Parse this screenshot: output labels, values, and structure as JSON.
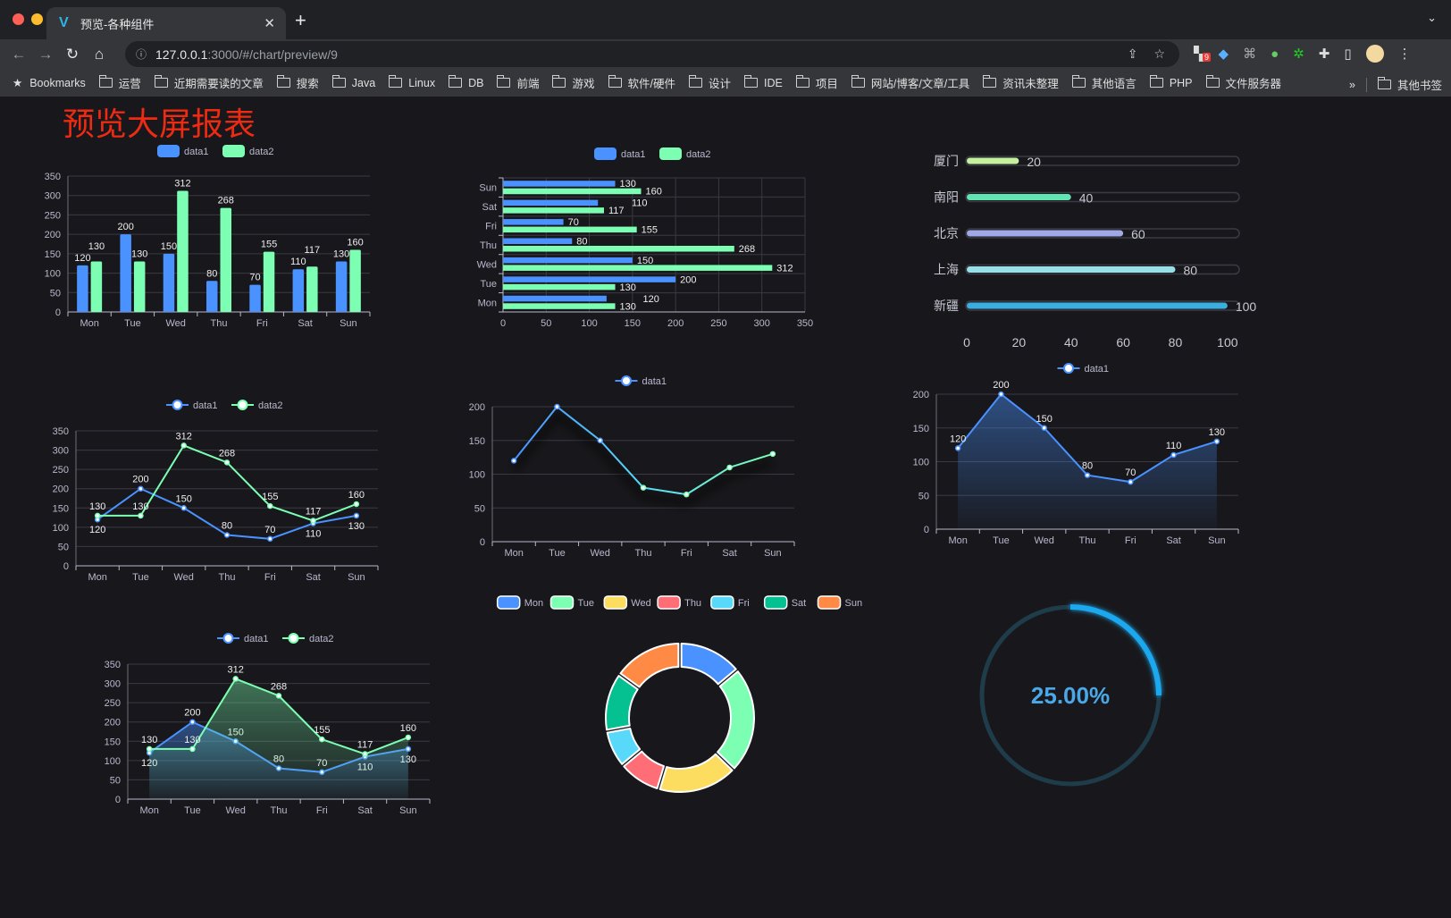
{
  "browser": {
    "tab_title": "预览-各种组件",
    "url_host": "127.0.0.1",
    "url_rest": ":3000/#/chart/preview/9",
    "extension_badge": "9",
    "bookmarks_label": "Bookmarks",
    "bookmark_folders": [
      "运营",
      "近期需要读的文章",
      "搜索",
      "Java",
      "Linux",
      "DB",
      "前端",
      "游戏",
      "软件/硬件",
      "设计",
      "IDE",
      "项目",
      "网站/博客/文章/工具",
      "资讯未整理",
      "其他语言",
      "PHP",
      "文件服务器"
    ],
    "overflow": "»",
    "other_bookmarks": "其他书签"
  },
  "page": {
    "title": "预览大屏报表"
  },
  "colors": {
    "blue": "#4992ff",
    "green": "#7cffb2",
    "yellow": "#fddd60",
    "red": "#ff6e76",
    "cyan": "#58d9f9",
    "teal": "#05c091",
    "orange": "#ff8a45",
    "title": "#ee2a12",
    "gauge": "#1fa8ef"
  },
  "chart_data": [
    {
      "type": "bar",
      "categories": [
        "Mon",
        "Tue",
        "Wed",
        "Thu",
        "Fri",
        "Sat",
        "Sun"
      ],
      "ylim": [
        0,
        350
      ],
      "yticks": [
        "0",
        "50",
        "100",
        "150",
        "200",
        "250",
        "300",
        "350"
      ],
      "legend": "top",
      "grid": true,
      "series": [
        {
          "name": "data1",
          "values": [
            120,
            200,
            150,
            80,
            70,
            110,
            130
          ],
          "color": "#4992ff"
        },
        {
          "name": "data2",
          "values": [
            130,
            130,
            312,
            268,
            155,
            117,
            160
          ],
          "color": "#7cffb2"
        }
      ]
    },
    {
      "type": "bar",
      "orientation": "horizontal",
      "categories": [
        "Mon",
        "Tue",
        "Wed",
        "Thu",
        "Fri",
        "Sat",
        "Sun"
      ],
      "xlim": [
        0,
        350
      ],
      "xticks": [
        "0",
        "50",
        "100",
        "150",
        "200",
        "250",
        "300",
        "350"
      ],
      "legend": "top",
      "grid": true,
      "series": [
        {
          "name": "data1",
          "values": [
            120,
            200,
            150,
            80,
            70,
            110,
            130
          ],
          "color": "#4992ff"
        },
        {
          "name": "data2",
          "values": [
            130,
            130,
            312,
            268,
            155,
            117,
            160
          ],
          "color": "#7cffb2"
        }
      ]
    },
    {
      "type": "bar",
      "subtype": "progress",
      "categories": [
        "厦门",
        "南阳",
        "北京",
        "上海",
        "新疆"
      ],
      "values": [
        20,
        40,
        60,
        80,
        100
      ],
      "xlim": [
        0,
        100
      ],
      "xticks": [
        "0",
        "20",
        "40",
        "60",
        "80",
        "100"
      ],
      "colors": [
        "#c5f0a0",
        "#62e3b2",
        "#a0a8e8",
        "#96e0e8",
        "#3aaee0"
      ]
    },
    {
      "type": "line",
      "categories": [
        "Mon",
        "Tue",
        "Wed",
        "Thu",
        "Fri",
        "Sat",
        "Sun"
      ],
      "ylim": [
        0,
        350
      ],
      "yticks": [
        "0",
        "50",
        "100",
        "150",
        "200",
        "250",
        "300",
        "350"
      ],
      "legend": "top",
      "grid": true,
      "series": [
        {
          "name": "data1",
          "values": [
            120,
            200,
            150,
            80,
            70,
            110,
            130
          ],
          "color": "#4992ff"
        },
        {
          "name": "data2",
          "values": [
            130,
            130,
            312,
            268,
            155,
            117,
            160
          ],
          "color": "#7cffb2"
        }
      ]
    },
    {
      "type": "line",
      "subtype": "gradient-shadow",
      "categories": [
        "Mon",
        "Tue",
        "Wed",
        "Thu",
        "Fri",
        "Sat",
        "Sun"
      ],
      "ylim": [
        0,
        200
      ],
      "yticks": [
        "0",
        "50",
        "100",
        "150",
        "200"
      ],
      "legend": "top",
      "grid": true,
      "series": [
        {
          "name": "data1",
          "values": [
            120,
            200,
            150,
            80,
            70,
            110,
            130
          ],
          "color": "#4992ff"
        }
      ]
    },
    {
      "type": "area",
      "categories": [
        "Mon",
        "Tue",
        "Wed",
        "Thu",
        "Fri",
        "Sat",
        "Sun"
      ],
      "ylim": [
        0,
        200
      ],
      "yticks": [
        "0",
        "50",
        "100",
        "150",
        "200"
      ],
      "legend": "top",
      "grid": true,
      "series": [
        {
          "name": "data1",
          "values": [
            120,
            200,
            150,
            80,
            70,
            110,
            130
          ],
          "color": "#4992ff"
        }
      ]
    },
    {
      "type": "area",
      "categories": [
        "Mon",
        "Tue",
        "Wed",
        "Thu",
        "Fri",
        "Sat",
        "Sun"
      ],
      "ylim": [
        0,
        350
      ],
      "yticks": [
        "0",
        "50",
        "100",
        "150",
        "200",
        "250",
        "300",
        "350"
      ],
      "legend": "top",
      "grid": true,
      "series": [
        {
          "name": "data1",
          "values": [
            120,
            200,
            150,
            80,
            70,
            110,
            130
          ],
          "color": "#4992ff"
        },
        {
          "name": "data2",
          "values": [
            130,
            130,
            312,
            268,
            155,
            117,
            160
          ],
          "color": "#7cffb2"
        }
      ]
    },
    {
      "type": "pie",
      "subtype": "donut",
      "legend": "top",
      "categories": [
        "Mon",
        "Tue",
        "Wed",
        "Thu",
        "Fri",
        "Sat",
        "Sun"
      ],
      "values": [
        120,
        200,
        150,
        80,
        70,
        110,
        130
      ],
      "colors": [
        "#4992ff",
        "#7cffb2",
        "#fddd60",
        "#ff6e76",
        "#58d9f9",
        "#05c091",
        "#ff8a45"
      ]
    },
    {
      "type": "gauge",
      "subtype": "progress-ring",
      "value": 25,
      "label": "25.00%"
    }
  ]
}
